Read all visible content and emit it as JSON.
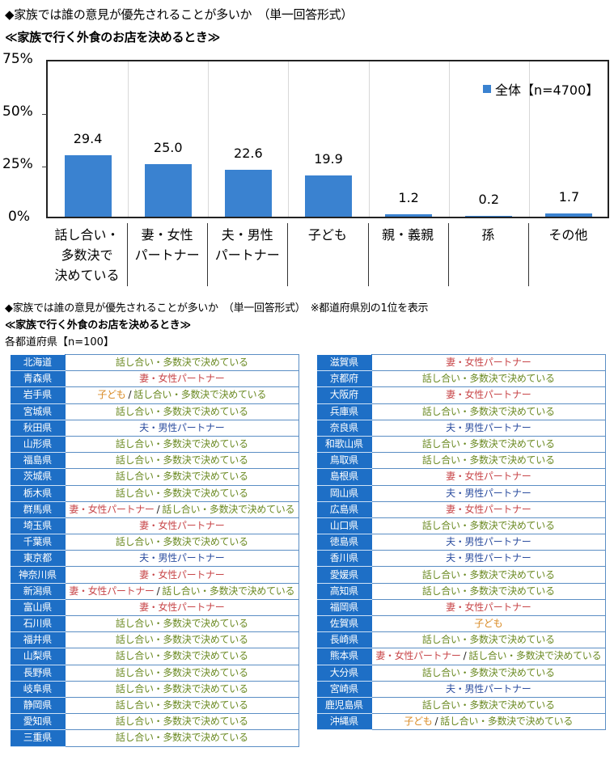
{
  "header": {
    "question": "◆家族では誰の意見が優先されることが多いか　（単一回答形式）",
    "scene": "≪家族で行く外食のお店を決めるとき≫"
  },
  "chart_data": {
    "type": "bar",
    "title": "家族で行く外食のお店を決めるとき",
    "categories": [
      "話し合い・多数決で決めている",
      "妻・女性パートナー",
      "夫・男性パートナー",
      "子ども",
      "親・義親",
      "孫",
      "その他"
    ],
    "category_lines": [
      [
        "話し合い・",
        "多数決で",
        "決めている"
      ],
      [
        "妻・女性",
        "パートナー"
      ],
      [
        "夫・男性",
        "パートナー"
      ],
      [
        "子ども"
      ],
      [
        "親・義親"
      ],
      [
        "孫"
      ],
      [
        "その他"
      ]
    ],
    "series": [
      {
        "name": "全体【n=4700】",
        "values": [
          29.4,
          25.0,
          22.6,
          19.9,
          1.2,
          0.2,
          1.7
        ],
        "color": "#3a82d0"
      }
    ],
    "value_labels": [
      "29.4",
      "25.0",
      "22.6",
      "19.9",
      "1.2",
      "0.2",
      "1.7"
    ],
    "xlabel": "",
    "ylabel": "",
    "ylim": [
      0,
      75
    ],
    "yticks": [
      "0%",
      "25%",
      "50%",
      "75%"
    ],
    "grid": "vertical category separators",
    "legend_position": "top-right inside plot"
  },
  "section2": {
    "question": "◆家族では誰の意見が優先されることが多いか　（単一回答形式）　※都道府県別の1位を表示",
    "scene": "≪家族で行く外食のお店を決めるとき≫",
    "sample": "各都道府県【n=100】"
  },
  "answer_labels": {
    "discuss": "話し合い・多数決で決めている",
    "wife": "妻・女性パートナー",
    "husband": "夫・男性パートナー",
    "child": "子ども"
  },
  "colors": {
    "discuss": "#6b8a23",
    "wife": "#c8474a",
    "husband": "#2e4fa0",
    "child": "#d98a24",
    "name_cell": "#1e6fc6",
    "bar": "#3a82d0"
  },
  "prefectures_left": [
    {
      "name": "北海道",
      "answers": [
        "discuss"
      ]
    },
    {
      "name": "青森県",
      "answers": [
        "wife"
      ]
    },
    {
      "name": "岩手県",
      "answers": [
        "child",
        "discuss"
      ]
    },
    {
      "name": "宮城県",
      "answers": [
        "discuss"
      ]
    },
    {
      "name": "秋田県",
      "answers": [
        "husband"
      ]
    },
    {
      "name": "山形県",
      "answers": [
        "discuss"
      ]
    },
    {
      "name": "福島県",
      "answers": [
        "discuss"
      ]
    },
    {
      "name": "茨城県",
      "answers": [
        "discuss"
      ]
    },
    {
      "name": "栃木県",
      "answers": [
        "discuss"
      ]
    },
    {
      "name": "群馬県",
      "answers": [
        "wife",
        "discuss"
      ]
    },
    {
      "name": "埼玉県",
      "answers": [
        "wife"
      ]
    },
    {
      "name": "千葉県",
      "answers": [
        "discuss"
      ]
    },
    {
      "name": "東京都",
      "answers": [
        "husband"
      ]
    },
    {
      "name": "神奈川県",
      "answers": [
        "wife"
      ]
    },
    {
      "name": "新潟県",
      "answers": [
        "wife",
        "discuss"
      ]
    },
    {
      "name": "富山県",
      "answers": [
        "wife"
      ]
    },
    {
      "name": "石川県",
      "answers": [
        "discuss"
      ]
    },
    {
      "name": "福井県",
      "answers": [
        "discuss"
      ]
    },
    {
      "name": "山梨県",
      "answers": [
        "discuss"
      ]
    },
    {
      "name": "長野県",
      "answers": [
        "discuss"
      ]
    },
    {
      "name": "岐阜県",
      "answers": [
        "discuss"
      ]
    },
    {
      "name": "静岡県",
      "answers": [
        "discuss"
      ]
    },
    {
      "name": "愛知県",
      "answers": [
        "discuss"
      ]
    },
    {
      "name": "三重県",
      "answers": [
        "discuss"
      ]
    }
  ],
  "prefectures_right": [
    {
      "name": "滋賀県",
      "answers": [
        "wife"
      ]
    },
    {
      "name": "京都府",
      "answers": [
        "discuss"
      ]
    },
    {
      "name": "大阪府",
      "answers": [
        "wife"
      ]
    },
    {
      "name": "兵庫県",
      "answers": [
        "discuss"
      ]
    },
    {
      "name": "奈良県",
      "answers": [
        "husband"
      ]
    },
    {
      "name": "和歌山県",
      "answers": [
        "discuss"
      ]
    },
    {
      "name": "鳥取県",
      "answers": [
        "discuss"
      ]
    },
    {
      "name": "島根県",
      "answers": [
        "wife"
      ]
    },
    {
      "name": "岡山県",
      "answers": [
        "husband"
      ]
    },
    {
      "name": "広島県",
      "answers": [
        "wife"
      ]
    },
    {
      "name": "山口県",
      "answers": [
        "discuss"
      ]
    },
    {
      "name": "徳島県",
      "answers": [
        "husband"
      ]
    },
    {
      "name": "香川県",
      "answers": [
        "husband"
      ]
    },
    {
      "name": "愛媛県",
      "answers": [
        "discuss"
      ]
    },
    {
      "name": "高知県",
      "answers": [
        "discuss"
      ]
    },
    {
      "name": "福岡県",
      "answers": [
        "wife"
      ]
    },
    {
      "name": "佐賀県",
      "answers": [
        "child"
      ]
    },
    {
      "name": "長崎県",
      "answers": [
        "discuss"
      ]
    },
    {
      "name": "熊本県",
      "answers": [
        "wife",
        "discuss"
      ]
    },
    {
      "name": "大分県",
      "answers": [
        "discuss"
      ]
    },
    {
      "name": "宮崎県",
      "answers": [
        "husband"
      ]
    },
    {
      "name": "鹿児島県",
      "answers": [
        "discuss"
      ]
    },
    {
      "name": "沖縄県",
      "answers": [
        "child",
        "discuss"
      ]
    }
  ],
  "separator": "/"
}
